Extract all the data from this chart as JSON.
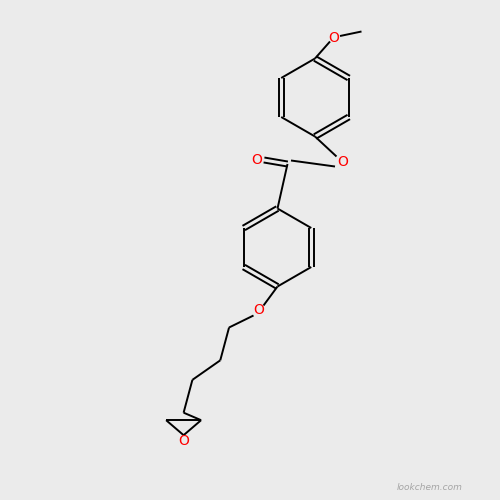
{
  "background_color": "#ebebeb",
  "bond_color": "#000000",
  "oxygen_color": "#ff0000",
  "font_size_atom": 10,
  "line_width": 1.4,
  "watermark": "lookchem.com",
  "xlim": [
    0,
    10
  ],
  "ylim": [
    0,
    10
  ]
}
